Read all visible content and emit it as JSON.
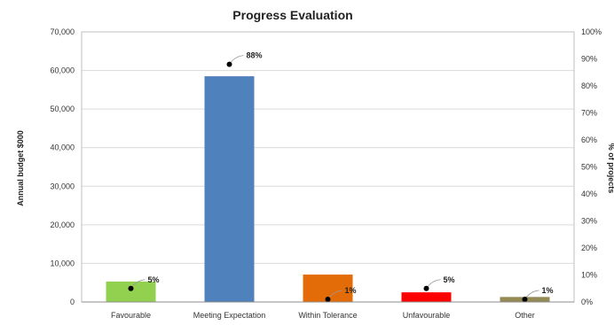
{
  "chart_data": {
    "type": "bar",
    "title": "Progress Evaluation",
    "categories": [
      "Favourable",
      "Meeting Expectation",
      "Within Tolerance",
      "Unfavourable",
      "Other"
    ],
    "series": [
      {
        "name": "Annual budget $000",
        "axis": "left",
        "type": "bar",
        "values": [
          5300,
          58500,
          7100,
          2500,
          1300
        ],
        "colors": [
          "#92d050",
          "#4f81bd",
          "#e36c09",
          "#ff0000",
          "#948a54"
        ]
      },
      {
        "name": "% of projects",
        "axis": "right",
        "type": "scatter",
        "values": [
          5,
          88,
          1,
          5,
          1
        ],
        "labels": [
          "5%",
          "88%",
          "1%",
          "5%",
          "1%"
        ],
        "color": "#000000"
      }
    ],
    "ylabel": "Annual budget $000",
    "ylabel_right": "% of projects",
    "ylim": [
      0,
      70000
    ],
    "ylim_right": [
      0,
      100
    ],
    "yticks": [
      "0",
      "10,000",
      "20,000",
      "30,000",
      "40,000",
      "50,000",
      "60,000",
      "70,000"
    ],
    "yticks_right": [
      "0%",
      "10%",
      "20%",
      "30%",
      "40%",
      "50%",
      "60%",
      "70%",
      "80%",
      "90%",
      "100%"
    ],
    "grid": true,
    "legend": "none"
  }
}
